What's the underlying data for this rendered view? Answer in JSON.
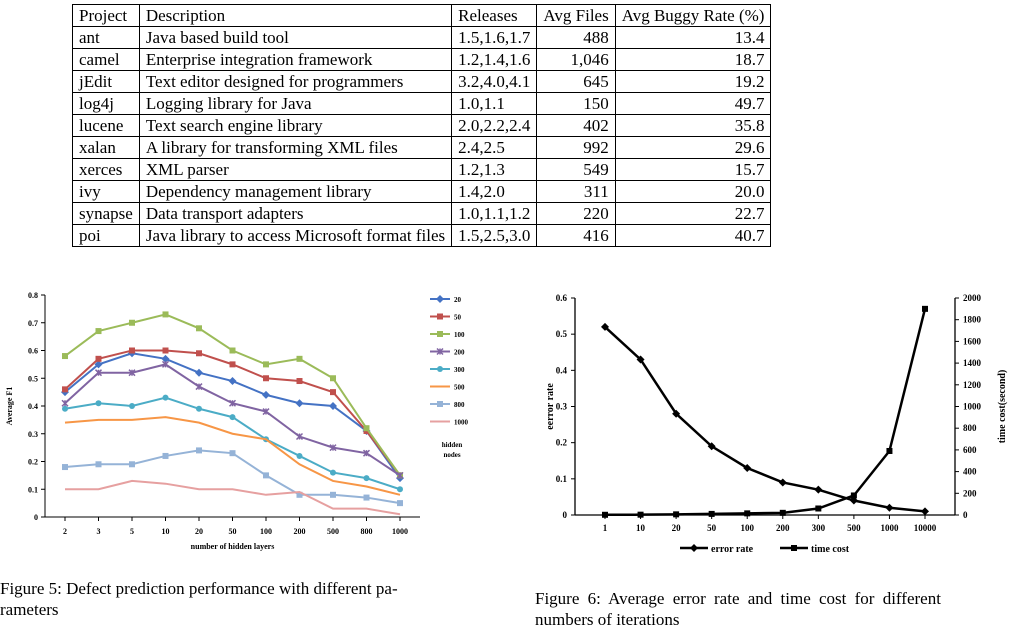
{
  "table": {
    "headers": [
      "Project",
      "Description",
      "Releases",
      "Avg Files",
      "Avg Buggy Rate (%)"
    ],
    "rows": [
      [
        "ant",
        "Java based build tool",
        "1.5,1.6,1.7",
        "488",
        "13.4"
      ],
      [
        "camel",
        "Enterprise integration framework",
        "1.2,1.4,1.6",
        "1,046",
        "18.7"
      ],
      [
        "jEdit",
        "Text editor designed for programmers",
        "3.2,4.0,4.1",
        "645",
        "19.2"
      ],
      [
        "log4j",
        "Logging library for Java",
        "1.0,1.1",
        "150",
        "49.7"
      ],
      [
        "lucene",
        "Text search engine library",
        "2.0,2.2,2.4",
        "402",
        "35.8"
      ],
      [
        "xalan",
        "A library for transforming XML files",
        "2.4,2.5",
        "992",
        "29.6"
      ],
      [
        "xerces",
        "XML parser",
        "1.2,1.3",
        "549",
        "15.7"
      ],
      [
        "ivy",
        "Dependency management library",
        "1.4,2.0",
        "311",
        "20.0"
      ],
      [
        "synapse",
        "Data transport adapters",
        "1.0,1.1,1.2",
        "220",
        "22.7"
      ],
      [
        "poi",
        "Java library to access Microsoft format files",
        "1.5,2.5,3.0",
        "416",
        "40.7"
      ]
    ]
  },
  "captions": {
    "fig5_line1": "Figure 5: Defect prediction performance with different pa-",
    "fig5_line2": "rameters",
    "fig6_line1": "Figure 6: Average error rate and time cost for different",
    "fig6_line2": "numbers of iterations"
  },
  "chart_data": [
    {
      "type": "line",
      "title": "",
      "xlabel": "number of hidden layers",
      "ylabel": "Average F1",
      "categories": [
        "2",
        "3",
        "5",
        "10",
        "20",
        "50",
        "100",
        "200",
        "500",
        "800",
        "1000"
      ],
      "ylim": [
        0,
        0.8
      ],
      "yticks": [
        "0",
        "0.1",
        "0.2",
        "0.3",
        "0.4",
        "0.5",
        "0.6",
        "0.7",
        "0.8"
      ],
      "legend_title": "hidden nodes",
      "legend_position": "right",
      "grid": false,
      "series": [
        {
          "name": "20",
          "color": "#4472c4",
          "marker": "diamond",
          "values": [
            0.45,
            0.55,
            0.59,
            0.57,
            0.52,
            0.49,
            0.44,
            0.41,
            0.4,
            0.31,
            0.14
          ]
        },
        {
          "name": "50",
          "color": "#c0504d",
          "marker": "square",
          "values": [
            0.46,
            0.57,
            0.6,
            0.6,
            0.59,
            0.55,
            0.5,
            0.49,
            0.45,
            0.31,
            0.15
          ]
        },
        {
          "name": "100",
          "color": "#9bbb59",
          "marker": "triangle",
          "values": [
            0.58,
            0.67,
            0.7,
            0.73,
            0.68,
            0.6,
            0.55,
            0.57,
            0.5,
            0.32,
            0.15
          ]
        },
        {
          "name": "200",
          "color": "#8064a2",
          "marker": "x",
          "values": [
            0.41,
            0.52,
            0.52,
            0.55,
            0.47,
            0.41,
            0.38,
            0.29,
            0.25,
            0.23,
            0.15
          ]
        },
        {
          "name": "300",
          "color": "#4bacc6",
          "marker": "circle",
          "values": [
            0.39,
            0.41,
            0.4,
            0.43,
            0.39,
            0.36,
            0.28,
            0.22,
            0.16,
            0.14,
            0.1
          ]
        },
        {
          "name": "500",
          "color": "#f79646",
          "marker": "none",
          "values": [
            0.34,
            0.35,
            0.35,
            0.36,
            0.34,
            0.3,
            0.28,
            0.19,
            0.13,
            0.11,
            0.08
          ]
        },
        {
          "name": "800",
          "color": "#95b3d7",
          "marker": "square",
          "values": [
            0.18,
            0.19,
            0.19,
            0.22,
            0.24,
            0.23,
            0.15,
            0.08,
            0.08,
            0.07,
            0.05
          ]
        },
        {
          "name": "1000",
          "color": "#e6a0a0",
          "marker": "none",
          "values": [
            0.1,
            0.1,
            0.13,
            0.12,
            0.1,
            0.1,
            0.08,
            0.09,
            0.03,
            0.03,
            0.01
          ]
        }
      ]
    },
    {
      "type": "line",
      "title": "",
      "xlabel": "",
      "ylabel": "eerror rate",
      "y2label": "time cost(second)",
      "categories": [
        "1",
        "10",
        "20",
        "50",
        "100",
        "200",
        "300",
        "500",
        "1000",
        "10000"
      ],
      "ylim": [
        0,
        0.6
      ],
      "y2lim": [
        0,
        2000
      ],
      "yticks": [
        "0",
        "0.1",
        "0.2",
        "0.3",
        "0.4",
        "0.5",
        "0.6"
      ],
      "y2ticks": [
        "0",
        "200",
        "400",
        "600",
        "800",
        "1000",
        "1200",
        "1400",
        "1600",
        "1800",
        "2000"
      ],
      "legend_position": "bottom",
      "grid": false,
      "series": [
        {
          "name": "error rate",
          "color": "#000000",
          "marker": "diamond",
          "axis": "left",
          "values": [
            0.52,
            0.43,
            0.28,
            0.19,
            0.13,
            0.09,
            0.07,
            0.04,
            0.02,
            0.01
          ]
        },
        {
          "name": "time cost",
          "color": "#000000",
          "marker": "square",
          "axis": "right",
          "values": [
            2,
            3,
            6,
            10,
            15,
            20,
            60,
            180,
            590,
            1900
          ]
        }
      ]
    }
  ]
}
